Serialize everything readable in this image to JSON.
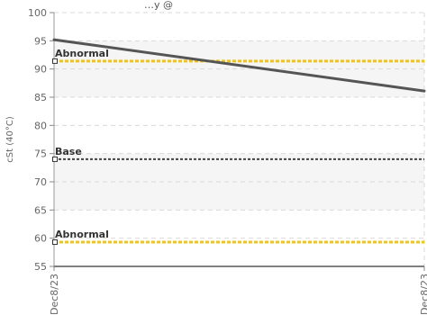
{
  "chart_data": {
    "type": "line",
    "title": "",
    "subtitle": "…y @",
    "xlabel": "",
    "ylabel": "cSt (40°C)",
    "ylim": [
      55,
      100
    ],
    "yticks": [
      55,
      60,
      65,
      70,
      75,
      80,
      85,
      90,
      95,
      100
    ],
    "xtick_labels": [
      "Dec8/23",
      "Dec8/23"
    ],
    "grid": true,
    "series": [
      {
        "values": [
          95.2,
          86.1
        ],
        "color": "#555555"
      }
    ],
    "reference_lines": [
      {
        "label": "Abnormal",
        "value": 91.4,
        "color": "#f0c419"
      },
      {
        "label": "Base",
        "value": 74.0,
        "color": "#444444"
      },
      {
        "label": "Abnormal",
        "value": 59.3,
        "color": "#f0c419"
      }
    ],
    "shaded_bands": [
      {
        "from": 85,
        "to": 95
      },
      {
        "from": 65,
        "to": 75
      }
    ]
  }
}
